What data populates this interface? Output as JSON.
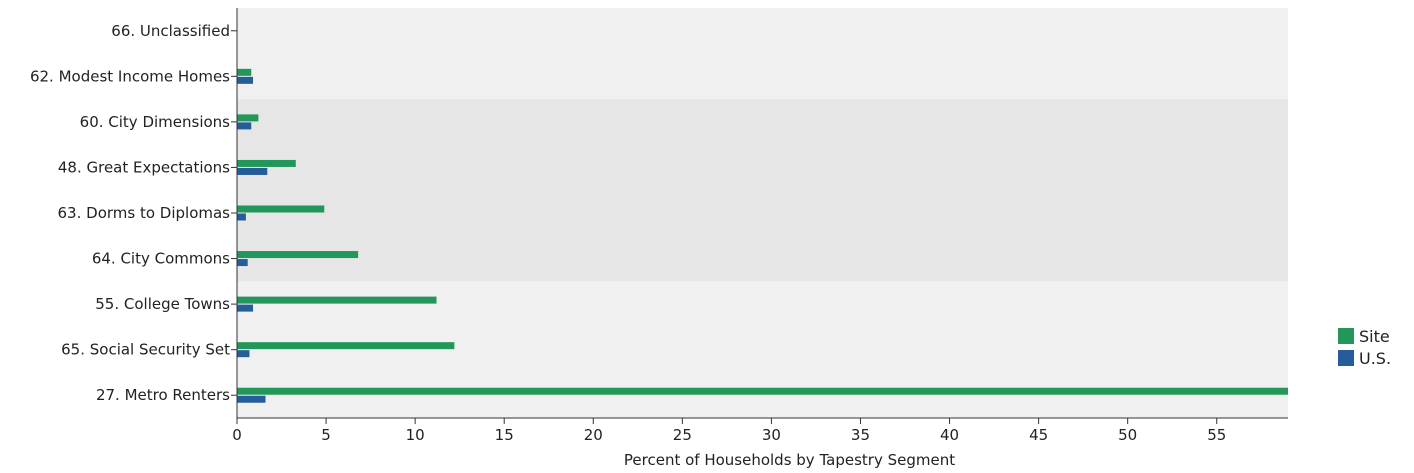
{
  "chart_data": {
    "type": "bar",
    "orientation": "horizontal",
    "categories": [
      "66. Unclassified",
      "62. Modest Income Homes",
      "60. City Dimensions",
      "48. Great Expectations",
      "63. Dorms to Diplomas",
      "64. City Commons",
      "55. College Towns",
      "65. Social Security Set",
      "27. Metro Renters"
    ],
    "series": [
      {
        "name": "Site",
        "color": "#23975a",
        "values": [
          0,
          0.8,
          1.2,
          3.3,
          4.9,
          6.8,
          11.2,
          12.2,
          59.0
        ]
      },
      {
        "name": "U.S.",
        "color": "#245d99",
        "values": [
          0,
          0.9,
          0.8,
          1.7,
          0.5,
          0.6,
          0.9,
          0.7,
          1.6
        ]
      }
    ],
    "xlabel": "Percent of Households by Tapestry Segment",
    "ylabel": "",
    "xlim": [
      0,
      59
    ],
    "xticks": [
      0,
      5,
      10,
      15,
      20,
      25,
      30,
      35,
      40,
      45,
      50,
      55
    ],
    "bands": [
      {
        "from_category": "66. Unclassified",
        "to_category": "62. Modest Income Homes",
        "color": "#f0f0f0"
      },
      {
        "from_category": "60. City Dimensions",
        "to_category": "64. City Commons",
        "color": "#e6e6e6"
      },
      {
        "from_category": "55. College Towns",
        "to_category": "27. Metro Renters",
        "color": "#f0f0f0"
      }
    ],
    "legend_position": "right",
    "grid": false
  }
}
